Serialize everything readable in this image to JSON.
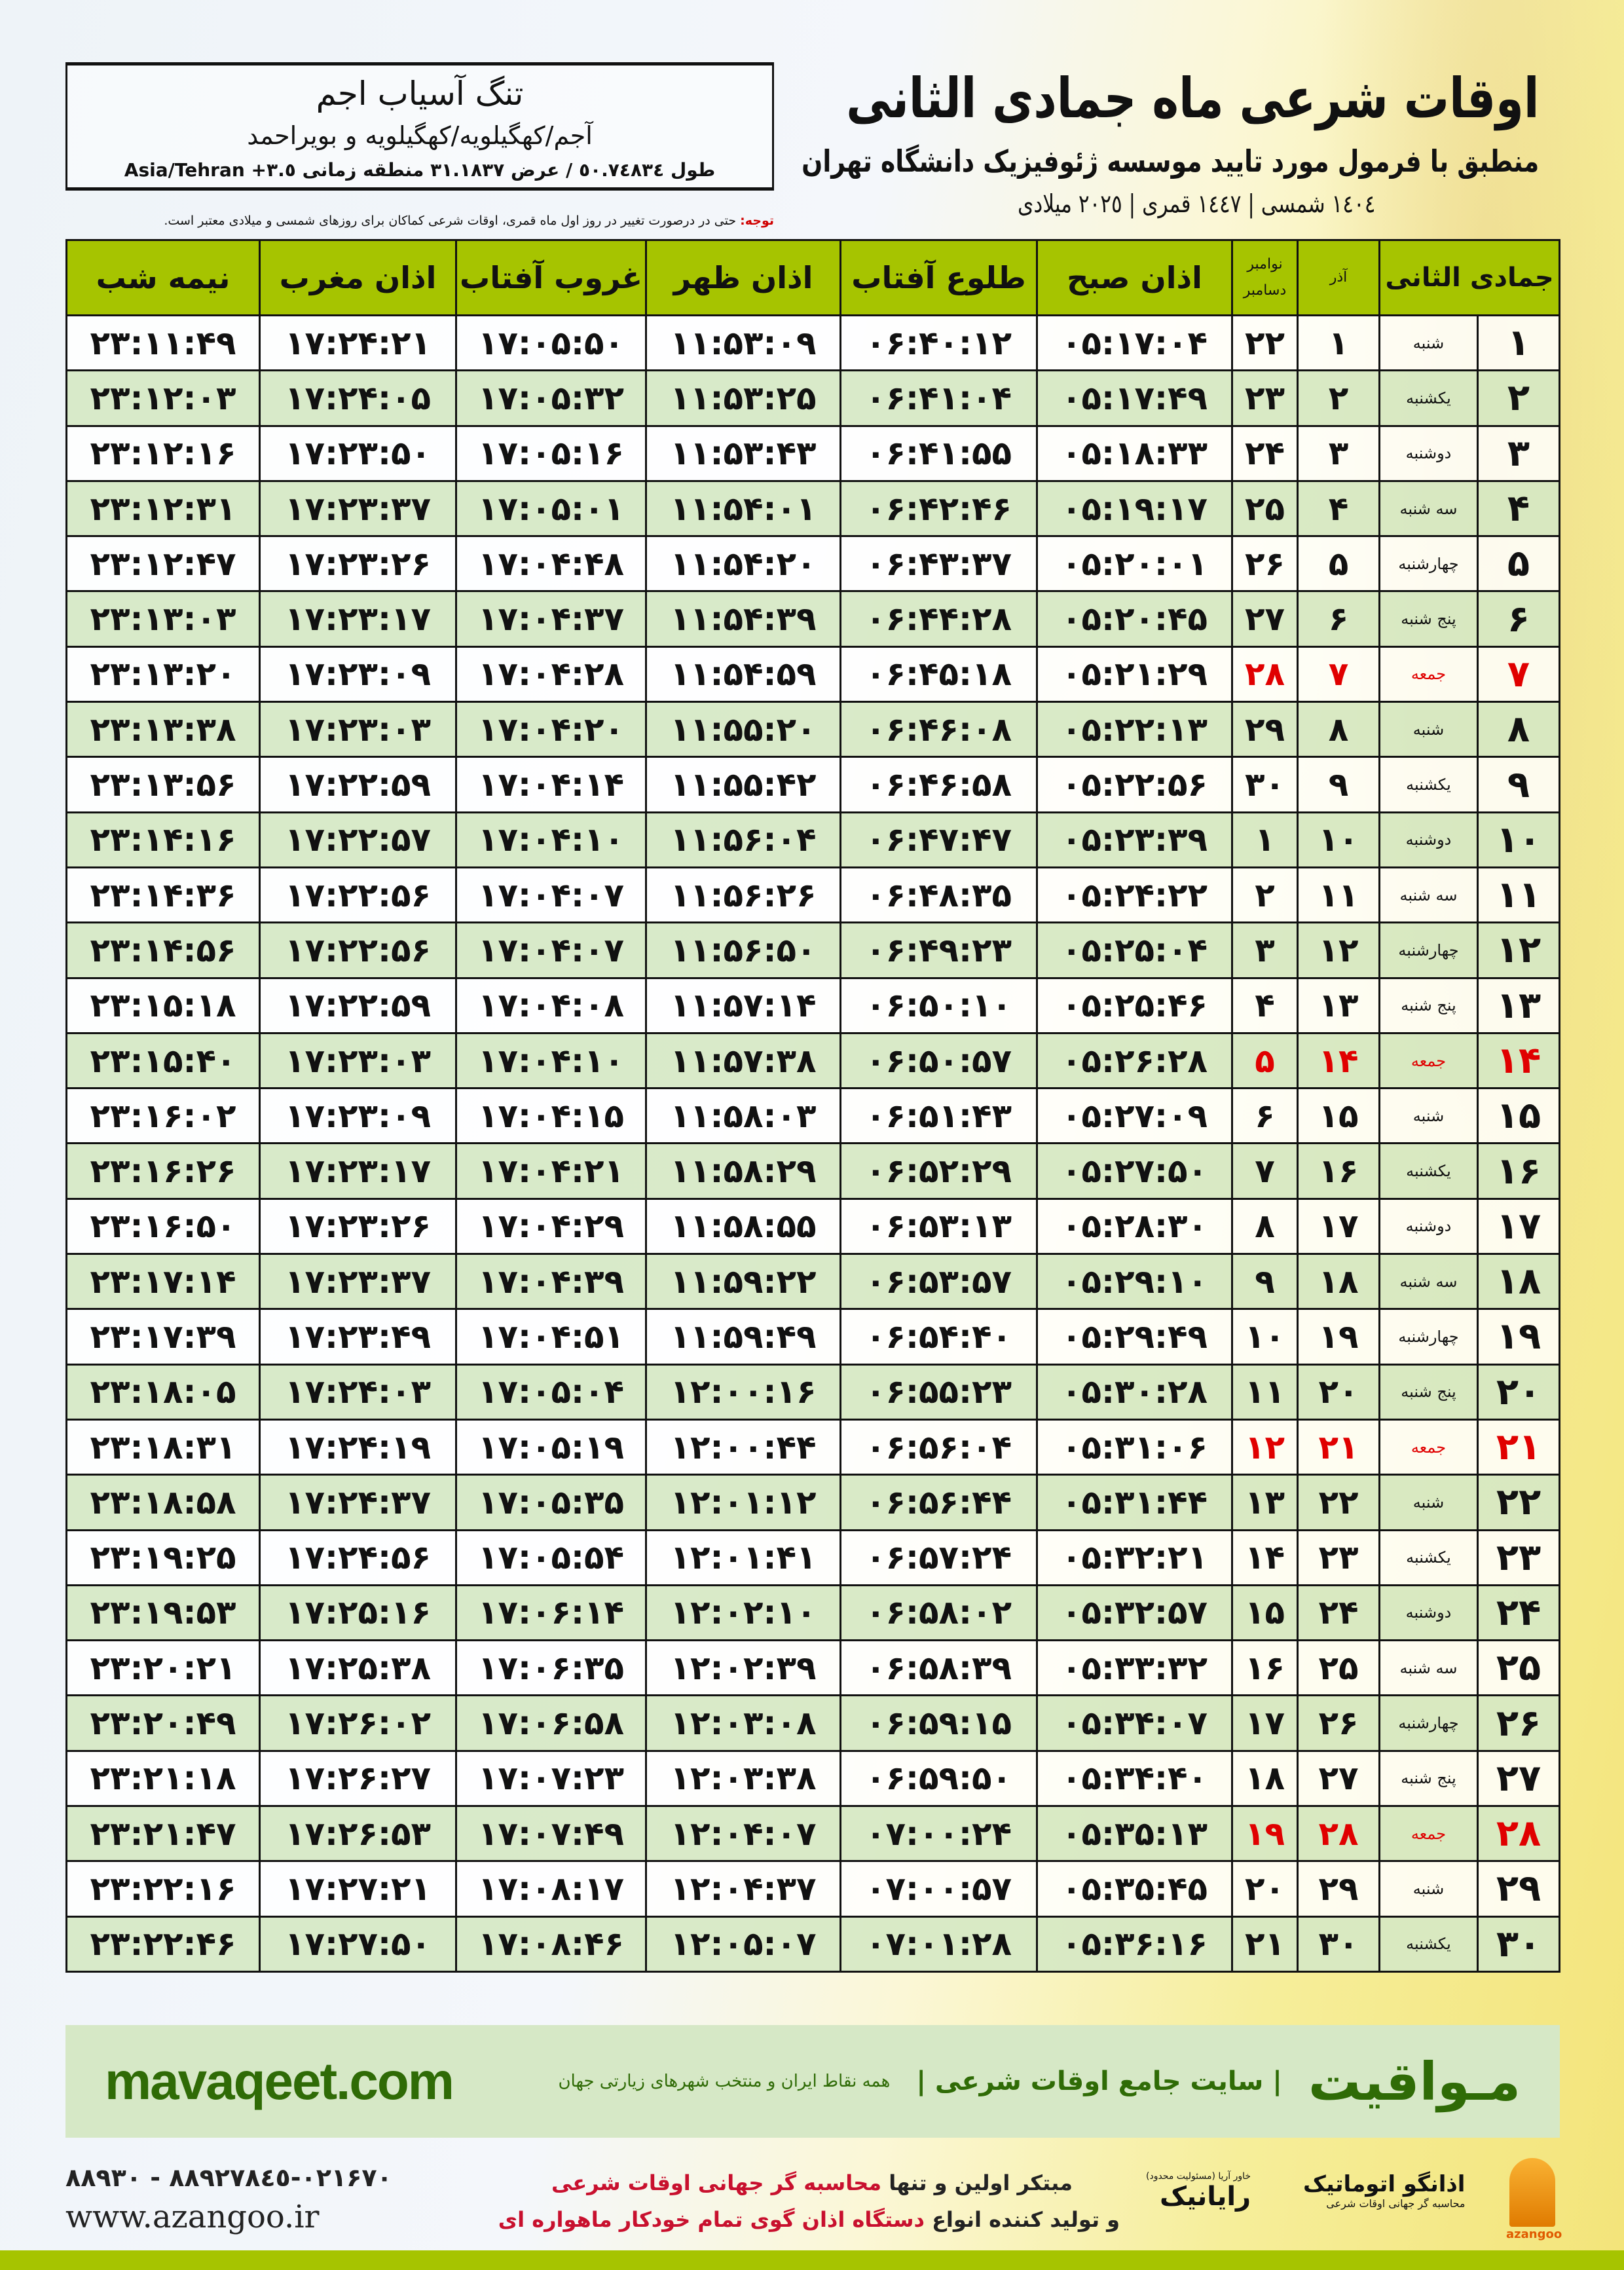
{
  "header": {
    "title": "اوقات شرعی ماه جمادی الثانی",
    "subtitle": "منطبق با فرمول مورد تایید موسسه ژئوفیزیک دانشگاه تهران",
    "years": "١٤٠٤ شمسی | ١٤٤٧ قمری | ٢٠٢٥ میلادی"
  },
  "location": {
    "city": "تنگ آسیاب اجم",
    "province": "آجم/کهگیلویه/کهگیلویه و بویراحمد",
    "coords": "طول ٥٠.٧٤٨٣٤ / عرض ٣١.١٨٣٧ منطقه زمانی ٣.٥+ Asia/Tehran"
  },
  "note": {
    "label": "توجه:",
    "text": " حتی در درصورت تغییر در روز اول ماه قمری، اوقات شرعی کماکان برای روزهای شمسی و میلادی معتبر است."
  },
  "table": {
    "headers": {
      "month": "جمادی الثانی",
      "azar": "آذر",
      "nov": "نوامبر",
      "dec": "دسامبر",
      "sobh": "اذان صبح",
      "tolu": "طلوع آفتاب",
      "zohr": "اذان ظهر",
      "ghorub": "غروب آفتاب",
      "maghrib": "اذان مغرب",
      "nimeh": "نیمه شب"
    },
    "rows": [
      {
        "day": "۱",
        "weekday": "شنبه",
        "azar": "۱",
        "greg": "۲۲",
        "sobh": "۰۵:۱۷:۰۴",
        "tolu": "۰۶:۴۰:۱۲",
        "zohr": "۱۱:۵۳:۰۹",
        "ghorub": "۱۷:۰۵:۵۰",
        "maghrib": "۱۷:۲۴:۲۱",
        "nimeh": "۲۳:۱۱:۴۹"
      },
      {
        "day": "۲",
        "weekday": "یکشنبه",
        "azar": "۲",
        "greg": "۲۳",
        "sobh": "۰۵:۱۷:۴۹",
        "tolu": "۰۶:۴۱:۰۴",
        "zohr": "۱۱:۵۳:۲۵",
        "ghorub": "۱۷:۰۵:۳۲",
        "maghrib": "۱۷:۲۴:۰۵",
        "nimeh": "۲۳:۱۲:۰۳"
      },
      {
        "day": "۳",
        "weekday": "دوشنبه",
        "azar": "۳",
        "greg": "۲۴",
        "sobh": "۰۵:۱۸:۳۳",
        "tolu": "۰۶:۴۱:۵۵",
        "zohr": "۱۱:۵۳:۴۳",
        "ghorub": "۱۷:۰۵:۱۶",
        "maghrib": "۱۷:۲۳:۵۰",
        "nimeh": "۲۳:۱۲:۱۶"
      },
      {
        "day": "۴",
        "weekday": "سه شنبه",
        "azar": "۴",
        "greg": "۲۵",
        "sobh": "۰۵:۱۹:۱۷",
        "tolu": "۰۶:۴۲:۴۶",
        "zohr": "۱۱:۵۴:۰۱",
        "ghorub": "۱۷:۰۵:۰۱",
        "maghrib": "۱۷:۲۳:۳۷",
        "nimeh": "۲۳:۱۲:۳۱"
      },
      {
        "day": "۵",
        "weekday": "چهارشنبه",
        "azar": "۵",
        "greg": "۲۶",
        "sobh": "۰۵:۲۰:۰۱",
        "tolu": "۰۶:۴۳:۳۷",
        "zohr": "۱۱:۵۴:۲۰",
        "ghorub": "۱۷:۰۴:۴۸",
        "maghrib": "۱۷:۲۳:۲۶",
        "nimeh": "۲۳:۱۲:۴۷"
      },
      {
        "day": "۶",
        "weekday": "پنج شنبه",
        "azar": "۶",
        "greg": "۲۷",
        "sobh": "۰۵:۲۰:۴۵",
        "tolu": "۰۶:۴۴:۲۸",
        "zohr": "۱۱:۵۴:۳۹",
        "ghorub": "۱۷:۰۴:۳۷",
        "maghrib": "۱۷:۲۳:۱۷",
        "nimeh": "۲۳:۱۳:۰۳"
      },
      {
        "day": "۷",
        "weekday": "جمعه",
        "azar": "۷",
        "greg": "۲۸",
        "holiday": true,
        "sobh": "۰۵:۲۱:۲۹",
        "tolu": "۰۶:۴۵:۱۸",
        "zohr": "۱۱:۵۴:۵۹",
        "ghorub": "۱۷:۰۴:۲۸",
        "maghrib": "۱۷:۲۳:۰۹",
        "nimeh": "۲۳:۱۳:۲۰"
      },
      {
        "day": "۸",
        "weekday": "شنبه",
        "azar": "۸",
        "greg": "۲۹",
        "sobh": "۰۵:۲۲:۱۳",
        "tolu": "۰۶:۴۶:۰۸",
        "zohr": "۱۱:۵۵:۲۰",
        "ghorub": "۱۷:۰۴:۲۰",
        "maghrib": "۱۷:۲۳:۰۳",
        "nimeh": "۲۳:۱۳:۳۸"
      },
      {
        "day": "۹",
        "weekday": "یکشنبه",
        "azar": "۹",
        "greg": "۳۰",
        "sobh": "۰۵:۲۲:۵۶",
        "tolu": "۰۶:۴۶:۵۸",
        "zohr": "۱۱:۵۵:۴۲",
        "ghorub": "۱۷:۰۴:۱۴",
        "maghrib": "۱۷:۲۲:۵۹",
        "nimeh": "۲۳:۱۳:۵۶"
      },
      {
        "day": "۱۰",
        "weekday": "دوشنبه",
        "azar": "۱۰",
        "greg": "۱",
        "sobh": "۰۵:۲۳:۳۹",
        "tolu": "۰۶:۴۷:۴۷",
        "zohr": "۱۱:۵۶:۰۴",
        "ghorub": "۱۷:۰۴:۱۰",
        "maghrib": "۱۷:۲۲:۵۷",
        "nimeh": "۲۳:۱۴:۱۶"
      },
      {
        "day": "۱۱",
        "weekday": "سه شنبه",
        "azar": "۱۱",
        "greg": "۲",
        "sobh": "۰۵:۲۴:۲۲",
        "tolu": "۰۶:۴۸:۳۵",
        "zohr": "۱۱:۵۶:۲۶",
        "ghorub": "۱۷:۰۴:۰۷",
        "maghrib": "۱۷:۲۲:۵۶",
        "nimeh": "۲۳:۱۴:۳۶"
      },
      {
        "day": "۱۲",
        "weekday": "چهارشنبه",
        "azar": "۱۲",
        "greg": "۳",
        "sobh": "۰۵:۲۵:۰۴",
        "tolu": "۰۶:۴۹:۲۳",
        "zohr": "۱۱:۵۶:۵۰",
        "ghorub": "۱۷:۰۴:۰۷",
        "maghrib": "۱۷:۲۲:۵۶",
        "nimeh": "۲۳:۱۴:۵۶"
      },
      {
        "day": "۱۳",
        "weekday": "پنج شنبه",
        "azar": "۱۳",
        "greg": "۴",
        "sobh": "۰۵:۲۵:۴۶",
        "tolu": "۰۶:۵۰:۱۰",
        "zohr": "۱۱:۵۷:۱۴",
        "ghorub": "۱۷:۰۴:۰۸",
        "maghrib": "۱۷:۲۲:۵۹",
        "nimeh": "۲۳:۱۵:۱۸"
      },
      {
        "day": "۱۴",
        "weekday": "جمعه",
        "azar": "۱۴",
        "greg": "۵",
        "holiday": true,
        "sobh": "۰۵:۲۶:۲۸",
        "tolu": "۰۶:۵۰:۵۷",
        "zohr": "۱۱:۵۷:۳۸",
        "ghorub": "۱۷:۰۴:۱۰",
        "maghrib": "۱۷:۲۳:۰۳",
        "nimeh": "۲۳:۱۵:۴۰"
      },
      {
        "day": "۱۵",
        "weekday": "شنبه",
        "azar": "۱۵",
        "greg": "۶",
        "sobh": "۰۵:۲۷:۰۹",
        "tolu": "۰۶:۵۱:۴۳",
        "zohr": "۱۱:۵۸:۰۳",
        "ghorub": "۱۷:۰۴:۱۵",
        "maghrib": "۱۷:۲۳:۰۹",
        "nimeh": "۲۳:۱۶:۰۲"
      },
      {
        "day": "۱۶",
        "weekday": "یکشنبه",
        "azar": "۱۶",
        "greg": "۷",
        "sobh": "۰۵:۲۷:۵۰",
        "tolu": "۰۶:۵۲:۲۹",
        "zohr": "۱۱:۵۸:۲۹",
        "ghorub": "۱۷:۰۴:۲۱",
        "maghrib": "۱۷:۲۳:۱۷",
        "nimeh": "۲۳:۱۶:۲۶"
      },
      {
        "day": "۱۷",
        "weekday": "دوشنبه",
        "azar": "۱۷",
        "greg": "۸",
        "sobh": "۰۵:۲۸:۳۰",
        "tolu": "۰۶:۵۳:۱۳",
        "zohr": "۱۱:۵۸:۵۵",
        "ghorub": "۱۷:۰۴:۲۹",
        "maghrib": "۱۷:۲۳:۲۶",
        "nimeh": "۲۳:۱۶:۵۰"
      },
      {
        "day": "۱۸",
        "weekday": "سه شنبه",
        "azar": "۱۸",
        "greg": "۹",
        "sobh": "۰۵:۲۹:۱۰",
        "tolu": "۰۶:۵۳:۵۷",
        "zohr": "۱۱:۵۹:۲۲",
        "ghorub": "۱۷:۰۴:۳۹",
        "maghrib": "۱۷:۲۳:۳۷",
        "nimeh": "۲۳:۱۷:۱۴"
      },
      {
        "day": "۱۹",
        "weekday": "چهارشنبه",
        "azar": "۱۹",
        "greg": "۱۰",
        "sobh": "۰۵:۲۹:۴۹",
        "tolu": "۰۶:۵۴:۴۰",
        "zohr": "۱۱:۵۹:۴۹",
        "ghorub": "۱۷:۰۴:۵۱",
        "maghrib": "۱۷:۲۳:۴۹",
        "nimeh": "۲۳:۱۷:۳۹"
      },
      {
        "day": "۲۰",
        "weekday": "پنج شنبه",
        "azar": "۲۰",
        "greg": "۱۱",
        "sobh": "۰۵:۳۰:۲۸",
        "tolu": "۰۶:۵۵:۲۳",
        "zohr": "۱۲:۰۰:۱۶",
        "ghorub": "۱۷:۰۵:۰۴",
        "maghrib": "۱۷:۲۴:۰۳",
        "nimeh": "۲۳:۱۸:۰۵"
      },
      {
        "day": "۲۱",
        "weekday": "جمعه",
        "azar": "۲۱",
        "greg": "۱۲",
        "holiday": true,
        "sobh": "۰۵:۳۱:۰۶",
        "tolu": "۰۶:۵۶:۰۴",
        "zohr": "۱۲:۰۰:۴۴",
        "ghorub": "۱۷:۰۵:۱۹",
        "maghrib": "۱۷:۲۴:۱۹",
        "nimeh": "۲۳:۱۸:۳۱"
      },
      {
        "day": "۲۲",
        "weekday": "شنبه",
        "azar": "۲۲",
        "greg": "۱۳",
        "sobh": "۰۵:۳۱:۴۴",
        "tolu": "۰۶:۵۶:۴۴",
        "zohr": "۱۲:۰۱:۱۲",
        "ghorub": "۱۷:۰۵:۳۵",
        "maghrib": "۱۷:۲۴:۳۷",
        "nimeh": "۲۳:۱۸:۵۸"
      },
      {
        "day": "۲۳",
        "weekday": "یکشنبه",
        "azar": "۲۳",
        "greg": "۱۴",
        "sobh": "۰۵:۳۲:۲۱",
        "tolu": "۰۶:۵۷:۲۴",
        "zohr": "۱۲:۰۱:۴۱",
        "ghorub": "۱۷:۰۵:۵۴",
        "maghrib": "۱۷:۲۴:۵۶",
        "nimeh": "۲۳:۱۹:۲۵"
      },
      {
        "day": "۲۴",
        "weekday": "دوشنبه",
        "azar": "۲۴",
        "greg": "۱۵",
        "sobh": "۰۵:۳۲:۵۷",
        "tolu": "۰۶:۵۸:۰۲",
        "zohr": "۱۲:۰۲:۱۰",
        "ghorub": "۱۷:۰۶:۱۴",
        "maghrib": "۱۷:۲۵:۱۶",
        "nimeh": "۲۳:۱۹:۵۳"
      },
      {
        "day": "۲۵",
        "weekday": "سه شنبه",
        "azar": "۲۵",
        "greg": "۱۶",
        "sobh": "۰۵:۳۳:۳۲",
        "tolu": "۰۶:۵۸:۳۹",
        "zohr": "۱۲:۰۲:۳۹",
        "ghorub": "۱۷:۰۶:۳۵",
        "maghrib": "۱۷:۲۵:۳۸",
        "nimeh": "۲۳:۲۰:۲۱"
      },
      {
        "day": "۲۶",
        "weekday": "چهارشنبه",
        "azar": "۲۶",
        "greg": "۱۷",
        "sobh": "۰۵:۳۴:۰۷",
        "tolu": "۰۶:۵۹:۱۵",
        "zohr": "۱۲:۰۳:۰۸",
        "ghorub": "۱۷:۰۶:۵۸",
        "maghrib": "۱۷:۲۶:۰۲",
        "nimeh": "۲۳:۲۰:۴۹"
      },
      {
        "day": "۲۷",
        "weekday": "پنج شنبه",
        "azar": "۲۷",
        "greg": "۱۸",
        "sobh": "۰۵:۳۴:۴۰",
        "tolu": "۰۶:۵۹:۵۰",
        "zohr": "۱۲:۰۳:۳۸",
        "ghorub": "۱۷:۰۷:۲۳",
        "maghrib": "۱۷:۲۶:۲۷",
        "nimeh": "۲۳:۲۱:۱۸"
      },
      {
        "day": "۲۸",
        "weekday": "جمعه",
        "azar": "۲۸",
        "greg": "۱۹",
        "holiday": true,
        "sobh": "۰۵:۳۵:۱۳",
        "tolu": "۰۷:۰۰:۲۴",
        "zohr": "۱۲:۰۴:۰۷",
        "ghorub": "۱۷:۰۷:۴۹",
        "maghrib": "۱۷:۲۶:۵۳",
        "nimeh": "۲۳:۲۱:۴۷"
      },
      {
        "day": "۲۹",
        "weekday": "شنبه",
        "azar": "۲۹",
        "greg": "۲۰",
        "sobh": "۰۵:۳۵:۴۵",
        "tolu": "۰۷:۰۰:۵۷",
        "zohr": "۱۲:۰۴:۳۷",
        "ghorub": "۱۷:۰۸:۱۷",
        "maghrib": "۱۷:۲۷:۲۱",
        "nimeh": "۲۳:۲۲:۱۶"
      },
      {
        "day": "۳۰",
        "weekday": "یکشنبه",
        "azar": "۳۰",
        "greg": "۲۱",
        "sobh": "۰۵:۳۶:۱۶",
        "tolu": "۰۷:۰۱:۲۸",
        "zohr": "۱۲:۰۵:۰۷",
        "ghorub": "۱۷:۰۸:۴۶",
        "maghrib": "۱۷:۲۷:۵۰",
        "nimeh": "۲۳:۲۲:۴۶"
      }
    ]
  },
  "footer": {
    "brand": "مـواقیت",
    "slogan": "| سایت جامع اوقات شرعی |",
    "slogan2": "همه نقاط ایران و منتخب شهرهای زیارتی جهان",
    "site": "mavaqeet.com"
  },
  "contact": {
    "phone": "٠٢١-٨٨٩٢٧٨٤٥ - ٨٨٩٣٠۶٧٠",
    "web": "www.azangoo.ir",
    "promo1_a": "مبتکر اولین و تنها ",
    "promo1_b": "محاسبه گر جهانی اوقات شرعی",
    "promo2_a": "و تولید کننده انواع ",
    "promo2_b": "دستگاه اذان گوی تمام خودکار ماهواره ای",
    "rayanik": "رایانیک",
    "rayanik_sub": "خاور آریا (مسئولیت محدود)",
    "azan_logo": "اذانگو اتوماتیک",
    "azan_sub": "محاسبه گر جهانی اوقات شرعی",
    "azan_en": "azangoo"
  },
  "colors": {
    "header_green": "#a6c400",
    "row_green": "#d6e8c6",
    "holiday_red": "#e00000",
    "brand_green": "#2f6b06"
  }
}
